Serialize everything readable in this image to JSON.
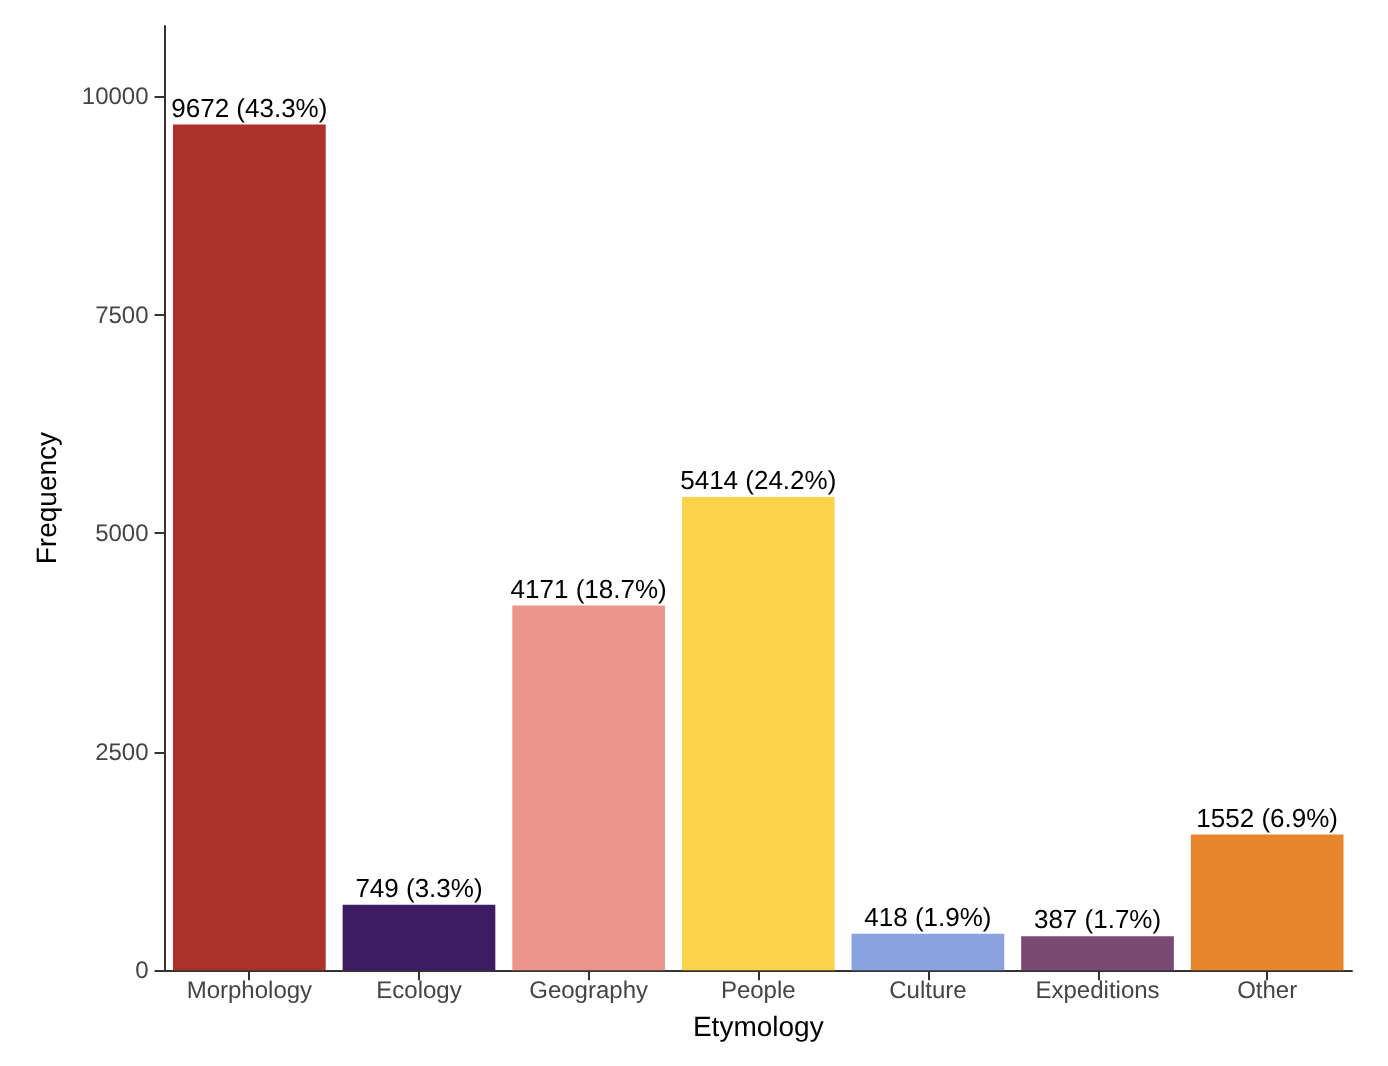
{
  "chart_data": {
    "type": "bar",
    "xlabel": "Etymology",
    "ylabel": "Frequency",
    "categories": [
      "Morphology",
      "Ecology",
      "Geography",
      "People",
      "Culture",
      "Expeditions",
      "Other"
    ],
    "values": [
      9672,
      749,
      4171,
      5414,
      418,
      387,
      1552
    ],
    "colors": [
      "#ab3129",
      "#3e1c63",
      "#ec958a",
      "#fbd34b",
      "#8aa2e0",
      "#7b4a74",
      "#e8862d"
    ],
    "value_labels": [
      "9672 (43.3%)",
      "749 (3.3%)",
      "4171 (18.7%)",
      "5414 (24.2%)",
      "418 (1.9%)",
      "387 (1.7%)",
      "1552 (6.9%)"
    ],
    "ylim": [
      0,
      10800
    ],
    "yticks": [
      0,
      2500,
      5000,
      7500,
      10000
    ],
    "grid": false
  }
}
